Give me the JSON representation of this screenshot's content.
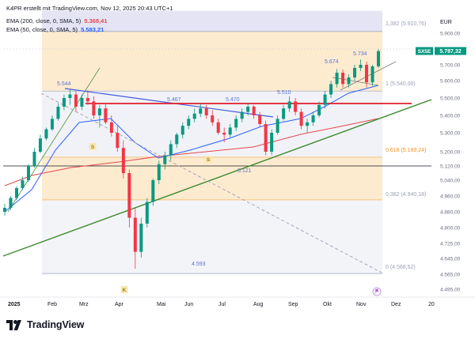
{
  "header": {
    "attribution": "K4PR erstellt mit TradingView.com, Nov 12, 2025 20:43 UTC+1",
    "indicators": [
      {
        "label": "EMA (200, close, 0, SMA, 5)",
        "value": "5.368,41",
        "color": "#e5484d"
      },
      {
        "label": "EMA (50, close, 0, SMA, 5)",
        "value": "5.583,21",
        "color": "#2962ff"
      }
    ]
  },
  "currency": "EUR",
  "symbol": {
    "name": "SX5E",
    "price": "5.787,32",
    "color": "#089981"
  },
  "brand": "TradingView",
  "icons": [
    "tradingview-logo-icon",
    "flag-icon"
  ],
  "price_axis": {
    "labels": [
      "5.900,00",
      "5.800,00",
      "5.700,00",
      "5.600,00",
      "5.500,00",
      "5.400,00",
      "5.300,00",
      "5.200,00",
      "5.120,00",
      "5.040,00",
      "4.960,00",
      "4.880,00",
      "4.800,00",
      "4.725,00",
      "4.645,00",
      "4.565,00",
      "4.495,00"
    ],
    "values": [
      5900,
      5800,
      5700,
      5600,
      5500,
      5400,
      5300,
      5200,
      5120,
      5040,
      4960,
      4880,
      4800,
      4725,
      4645,
      4565,
      4495
    ]
  },
  "time_axis": {
    "labels": [
      "2025",
      "Feb",
      "Mrz",
      "Apr",
      "Mai",
      "Jun",
      "Jul",
      "Aug",
      "Sep",
      "Okt",
      "Nov",
      "Dez",
      "20"
    ]
  },
  "fib_levels": [
    {
      "label": "1,382 (5.910,76)",
      "value": 5910.76
    },
    {
      "label": "1 (5.540,00)",
      "value": 5540
    },
    {
      "label": "0,618 (5.169,24)",
      "value": 5169.24
    },
    {
      "label": "0,382 (4.940,18)",
      "value": 4940.18
    },
    {
      "label": "0 (4.568,52)",
      "value": 4568.52
    }
  ],
  "price_annotations": [
    "5.544",
    "5.467",
    "5.470",
    "5.510",
    "5.674",
    "5.734",
    "5.121",
    "4.593"
  ],
  "markers": [
    "S",
    "S",
    "K"
  ],
  "chart_data": {
    "type": "candlestick",
    "title": "",
    "ylabel": "EUR",
    "ylim": [
      4495,
      5900
    ],
    "candles": [
      [
        4880,
        4920,
        4860,
        4900
      ],
      [
        4900,
        4960,
        4890,
        4950
      ],
      [
        4950,
        5010,
        4940,
        5000
      ],
      [
        5000,
        5060,
        4990,
        5040
      ],
      [
        5040,
        5130,
        5030,
        5120
      ],
      [
        5120,
        5220,
        5110,
        5200
      ],
      [
        5200,
        5290,
        5190,
        5270
      ],
      [
        5270,
        5330,
        5260,
        5320
      ],
      [
        5320,
        5400,
        5310,
        5380
      ],
      [
        5380,
        5470,
        5370,
        5450
      ],
      [
        5450,
        5520,
        5430,
        5500
      ],
      [
        5500,
        5550,
        5460,
        5520
      ],
      [
        5520,
        5540,
        5420,
        5450
      ],
      [
        5450,
        5520,
        5430,
        5500
      ],
      [
        5500,
        5544,
        5460,
        5480
      ],
      [
        5480,
        5510,
        5380,
        5400
      ],
      [
        5400,
        5460,
        5330,
        5440
      ],
      [
        5440,
        5470,
        5350,
        5360
      ],
      [
        5360,
        5400,
        5280,
        5300
      ],
      [
        5300,
        5340,
        5200,
        5220
      ],
      [
        5220,
        5260,
        5050,
        5080
      ],
      [
        5080,
        5100,
        4800,
        4850
      ],
      [
        4850,
        4900,
        4593,
        4680
      ],
      [
        4680,
        4850,
        4650,
        4820
      ],
      [
        4820,
        4950,
        4800,
        4930
      ],
      [
        4930,
        5050,
        4910,
        5040
      ],
      [
        5040,
        5150,
        5020,
        5130
      ],
      [
        5130,
        5200,
        5100,
        5180
      ],
      [
        5180,
        5260,
        5150,
        5240
      ],
      [
        5240,
        5300,
        5220,
        5290
      ],
      [
        5290,
        5360,
        5270,
        5340
      ],
      [
        5340,
        5400,
        5320,
        5380
      ],
      [
        5380,
        5440,
        5360,
        5410
      ],
      [
        5410,
        5467,
        5390,
        5440
      ],
      [
        5440,
        5460,
        5380,
        5400
      ],
      [
        5400,
        5430,
        5340,
        5360
      ],
      [
        5360,
        5380,
        5290,
        5300
      ],
      [
        5300,
        5330,
        5250,
        5290
      ],
      [
        5290,
        5350,
        5270,
        5330
      ],
      [
        5330,
        5400,
        5310,
        5380
      ],
      [
        5380,
        5440,
        5360,
        5420
      ],
      [
        5420,
        5470,
        5400,
        5450
      ],
      [
        5450,
        5460,
        5380,
        5400
      ],
      [
        5400,
        5420,
        5330,
        5350
      ],
      [
        5350,
        5370,
        5180,
        5200
      ],
      [
        5200,
        5320,
        5180,
        5300
      ],
      [
        5300,
        5400,
        5290,
        5380
      ],
      [
        5380,
        5460,
        5370,
        5440
      ],
      [
        5440,
        5510,
        5420,
        5480
      ],
      [
        5480,
        5500,
        5400,
        5420
      ],
      [
        5420,
        5440,
        5320,
        5340
      ],
      [
        5340,
        5380,
        5300,
        5360
      ],
      [
        5360,
        5420,
        5340,
        5400
      ],
      [
        5400,
        5480,
        5390,
        5460
      ],
      [
        5460,
        5540,
        5440,
        5520
      ],
      [
        5520,
        5600,
        5500,
        5580
      ],
      [
        5580,
        5674,
        5560,
        5650
      ],
      [
        5650,
        5670,
        5560,
        5580
      ],
      [
        5580,
        5640,
        5560,
        5620
      ],
      [
        5620,
        5700,
        5600,
        5680
      ],
      [
        5680,
        5734,
        5660,
        5700
      ],
      [
        5700,
        5720,
        5560,
        5590
      ],
      [
        5590,
        5700,
        5570,
        5690
      ],
      [
        5690,
        5800,
        5680,
        5787
      ]
    ],
    "series": [
      {
        "name": "EMA (200, close, 0, SMA, 5)",
        "last": 5368.41
      },
      {
        "name": "EMA (50, close, 0, SMA, 5)",
        "last": 5583.21
      }
    ],
    "colors": {
      "up": "#089981",
      "down": "#f23645",
      "ema200": "#e5484d",
      "ema50": "#2962ff"
    }
  }
}
